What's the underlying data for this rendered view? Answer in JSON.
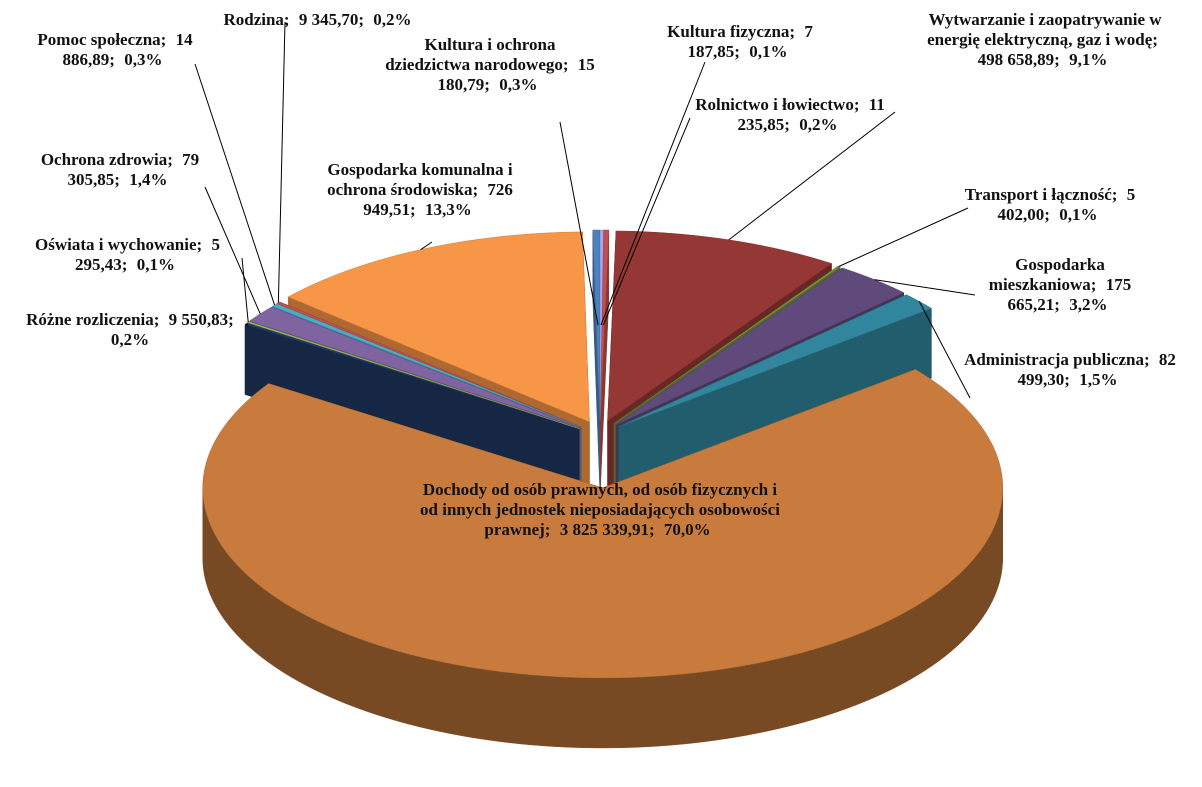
{
  "chart_data": {
    "type": "pie3d",
    "categories": [
      "Kultura fizyczna;",
      "Rolnictwo i łowiectwo;",
      "Wytwarzanie i zaopatrywanie w energię elektryczną, gaz i wodę;",
      "Transport i łączność;",
      "Gospodarka mieszkaniowa;",
      "Administracja publiczna;",
      "Dochody od osób prawnych, od osób fizycznych i od innych jednostek nieposiadających osobowości prawnej;",
      "Różne rozliczenia;",
      "Oświata i wychowanie;",
      "Ochrona zdrowia;",
      "Pomoc społeczna;",
      "Rodzina;",
      "Gospodarka komunalna i ochrona środowiska;",
      "Kultura i ochrona dziedzictwa narodowego;"
    ],
    "values": [
      7187.85,
      11235.85,
      498658.89,
      5402.0,
      175665.21,
      82499.3,
      3825339.91,
      9550.83,
      5295.43,
      79305.85,
      14886.89,
      9345.7,
      726949.51,
      15180.79
    ],
    "value_labels": [
      "7 187,85;",
      "11 235,85;",
      "498 658,89;",
      "5 402,00;",
      "175 665,21;",
      "82 499,30;",
      "3 825 339,91;",
      "9 550,83;",
      "5 295,43;",
      "79 305,85;",
      "14 886,89;",
      "9 345,70;",
      "726 949,51;",
      "15 180,79;"
    ],
    "percents": [
      0.1,
      0.2,
      9.1,
      0.1,
      3.2,
      1.5,
      70.0,
      0.2,
      0.1,
      1.4,
      0.3,
      0.2,
      13.3,
      0.3
    ],
    "percent_labels": [
      "0,1%",
      "0,2%",
      "9,1%",
      "0,1%",
      "3,2%",
      "1,5%",
      "70,0%",
      "0,2%",
      "0,1%",
      "1,4%",
      "0,3%",
      "0,2%",
      "13,3%",
      "0,3%"
    ],
    "colors": [
      "#a6a6ff",
      "#c0504d",
      "#953735",
      "#77933c",
      "#604a7b",
      "#31859c",
      "#c87b3c",
      "#1f3864",
      "#9bbb59",
      "#8064a2",
      "#4bacc6",
      "#c0504d",
      "#f79646",
      "#4f81bd"
    ]
  }
}
